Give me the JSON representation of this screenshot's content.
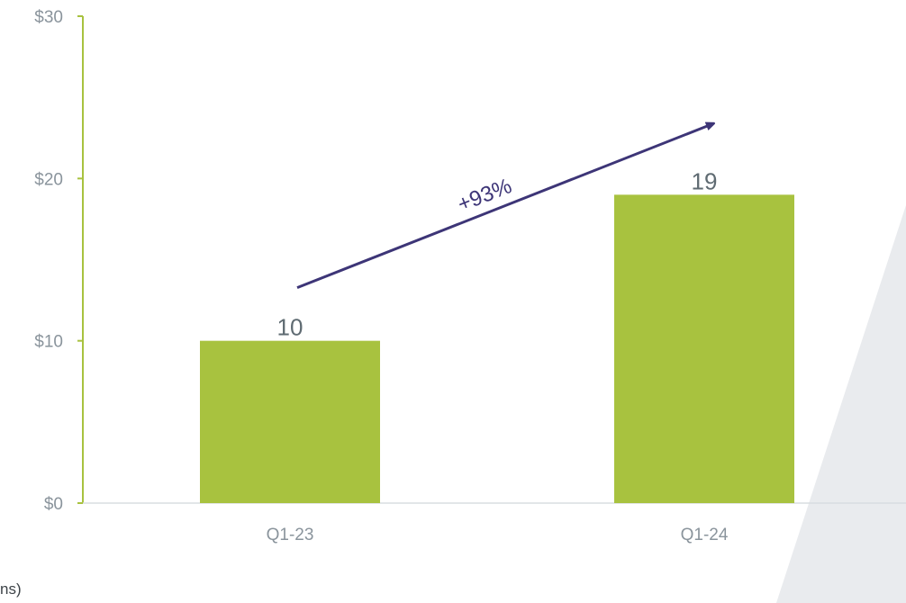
{
  "chart_data": {
    "type": "bar",
    "categories": [
      "Q1-23",
      "Q1-24"
    ],
    "values": [
      10,
      19
    ],
    "data_labels": [
      "10",
      "19"
    ],
    "ylim": [
      0,
      30
    ],
    "y_ticks": [
      0,
      10,
      20,
      30
    ],
    "y_tick_labels": [
      "$0",
      "$10",
      "$20",
      "$30"
    ],
    "grid": false,
    "annotation": {
      "text": "+93%",
      "type": "growth-arrow",
      "from": "Q1-23",
      "to": "Q1-24"
    },
    "footnote": "ns)",
    "colors": {
      "bar": "#a8c23f",
      "y_axis": "#a8c23f",
      "baseline": "#d8dde0",
      "arrow": "#3d3577",
      "tick_text": "#8a949c",
      "data_text": "#5f6b72",
      "decor_shape": "#e9ebee"
    }
  }
}
